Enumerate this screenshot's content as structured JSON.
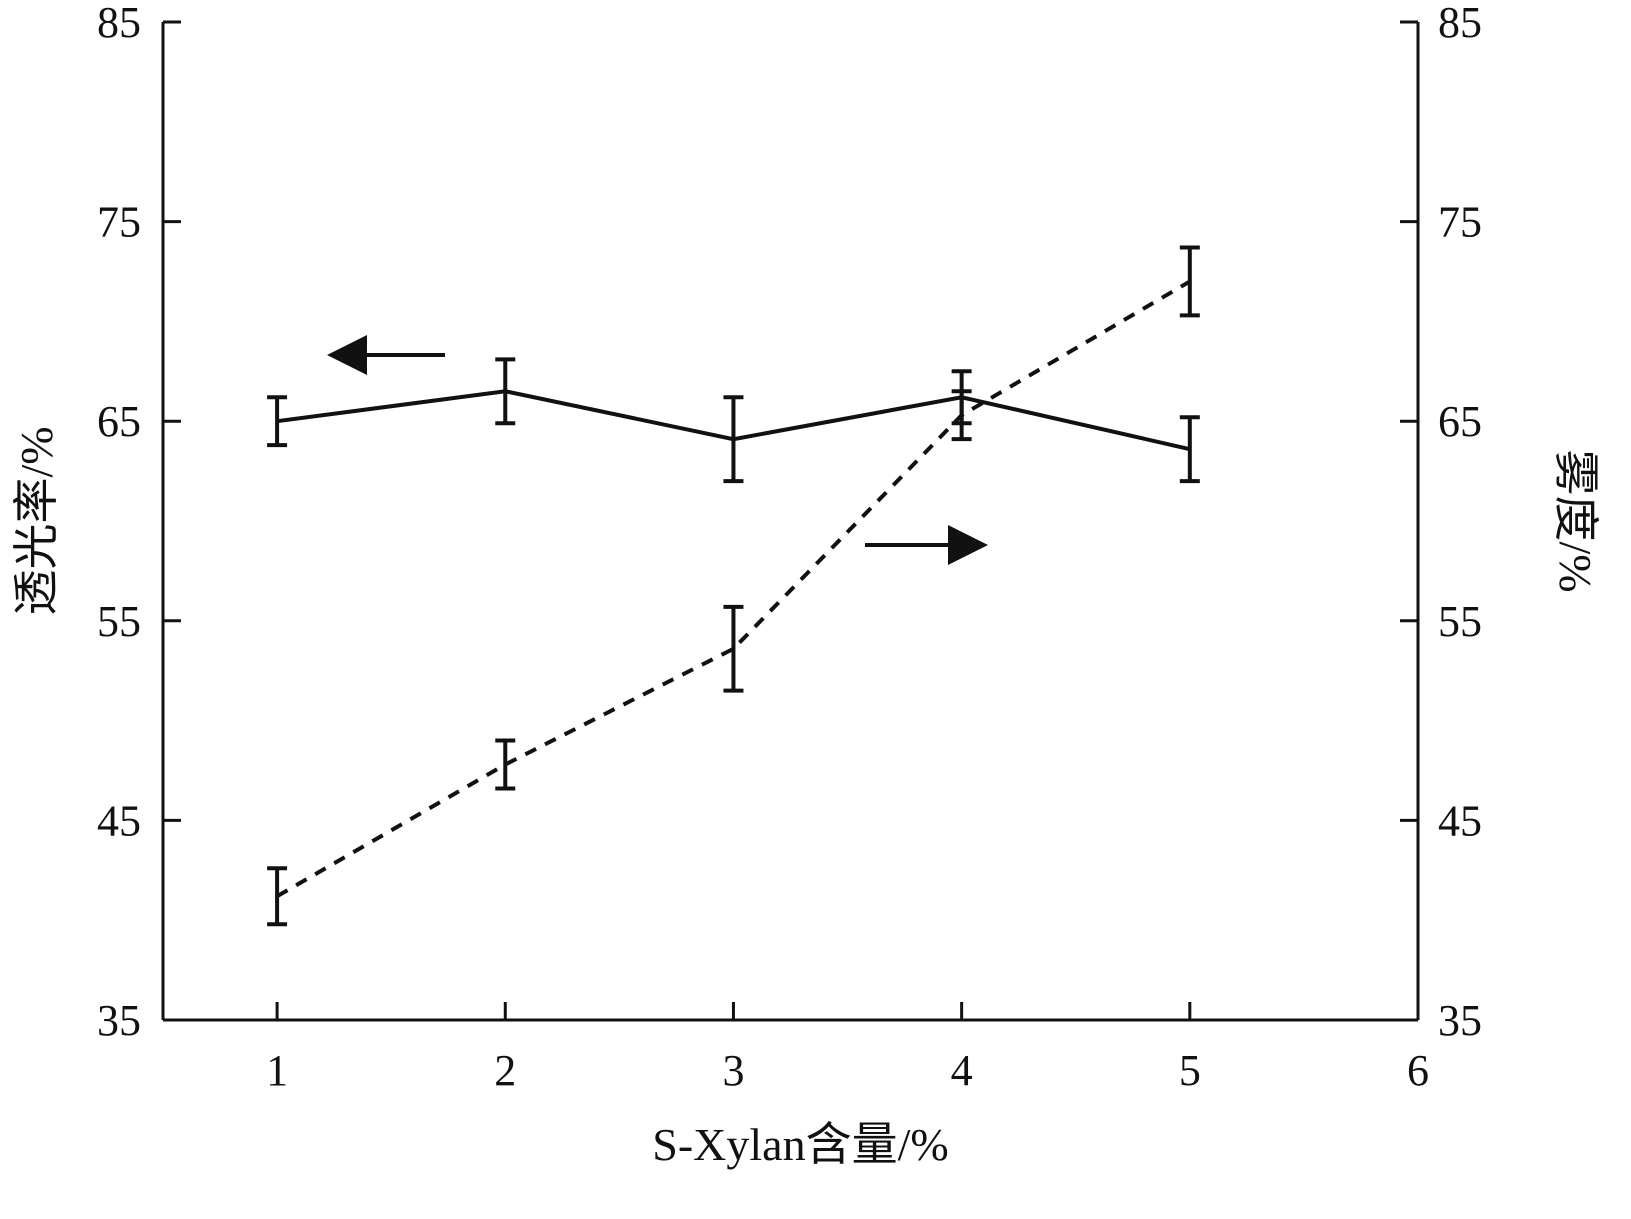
{
  "chart_data": {
    "type": "line",
    "x": [
      1,
      2,
      3,
      4,
      5
    ],
    "xlim": [
      0.5,
      6
    ],
    "xticks": [
      1,
      2,
      3,
      4,
      5,
      6
    ],
    "xlabel": "S-Xylan含量/%",
    "ylabel_left": "透光率/%",
    "ylabel_right": "雾度/%",
    "ylim_left": [
      35,
      85
    ],
    "ylim_right": [
      35,
      85
    ],
    "yticks": [
      35,
      45,
      55,
      65,
      75,
      85
    ],
    "grid": false,
    "series": [
      {
        "axis": "left",
        "style": "solid",
        "values": [
          65.0,
          66.5,
          64.1,
          66.2,
          63.6
        ],
        "errors": [
          1.2,
          1.6,
          2.1,
          1.3,
          1.6
        ]
      },
      {
        "axis": "right",
        "style": "dashed",
        "values": [
          41.2,
          47.8,
          53.6,
          65.3,
          72.0
        ],
        "errors": [
          1.4,
          1.2,
          2.1,
          1.2,
          1.7
        ]
      }
    ],
    "annotations": [
      {
        "type": "arrow",
        "direction": "left",
        "refers_to": "left-axis series"
      },
      {
        "type": "arrow",
        "direction": "right",
        "refers_to": "right-axis series"
      }
    ],
    "colors": {
      "ink": "#111111"
    }
  }
}
